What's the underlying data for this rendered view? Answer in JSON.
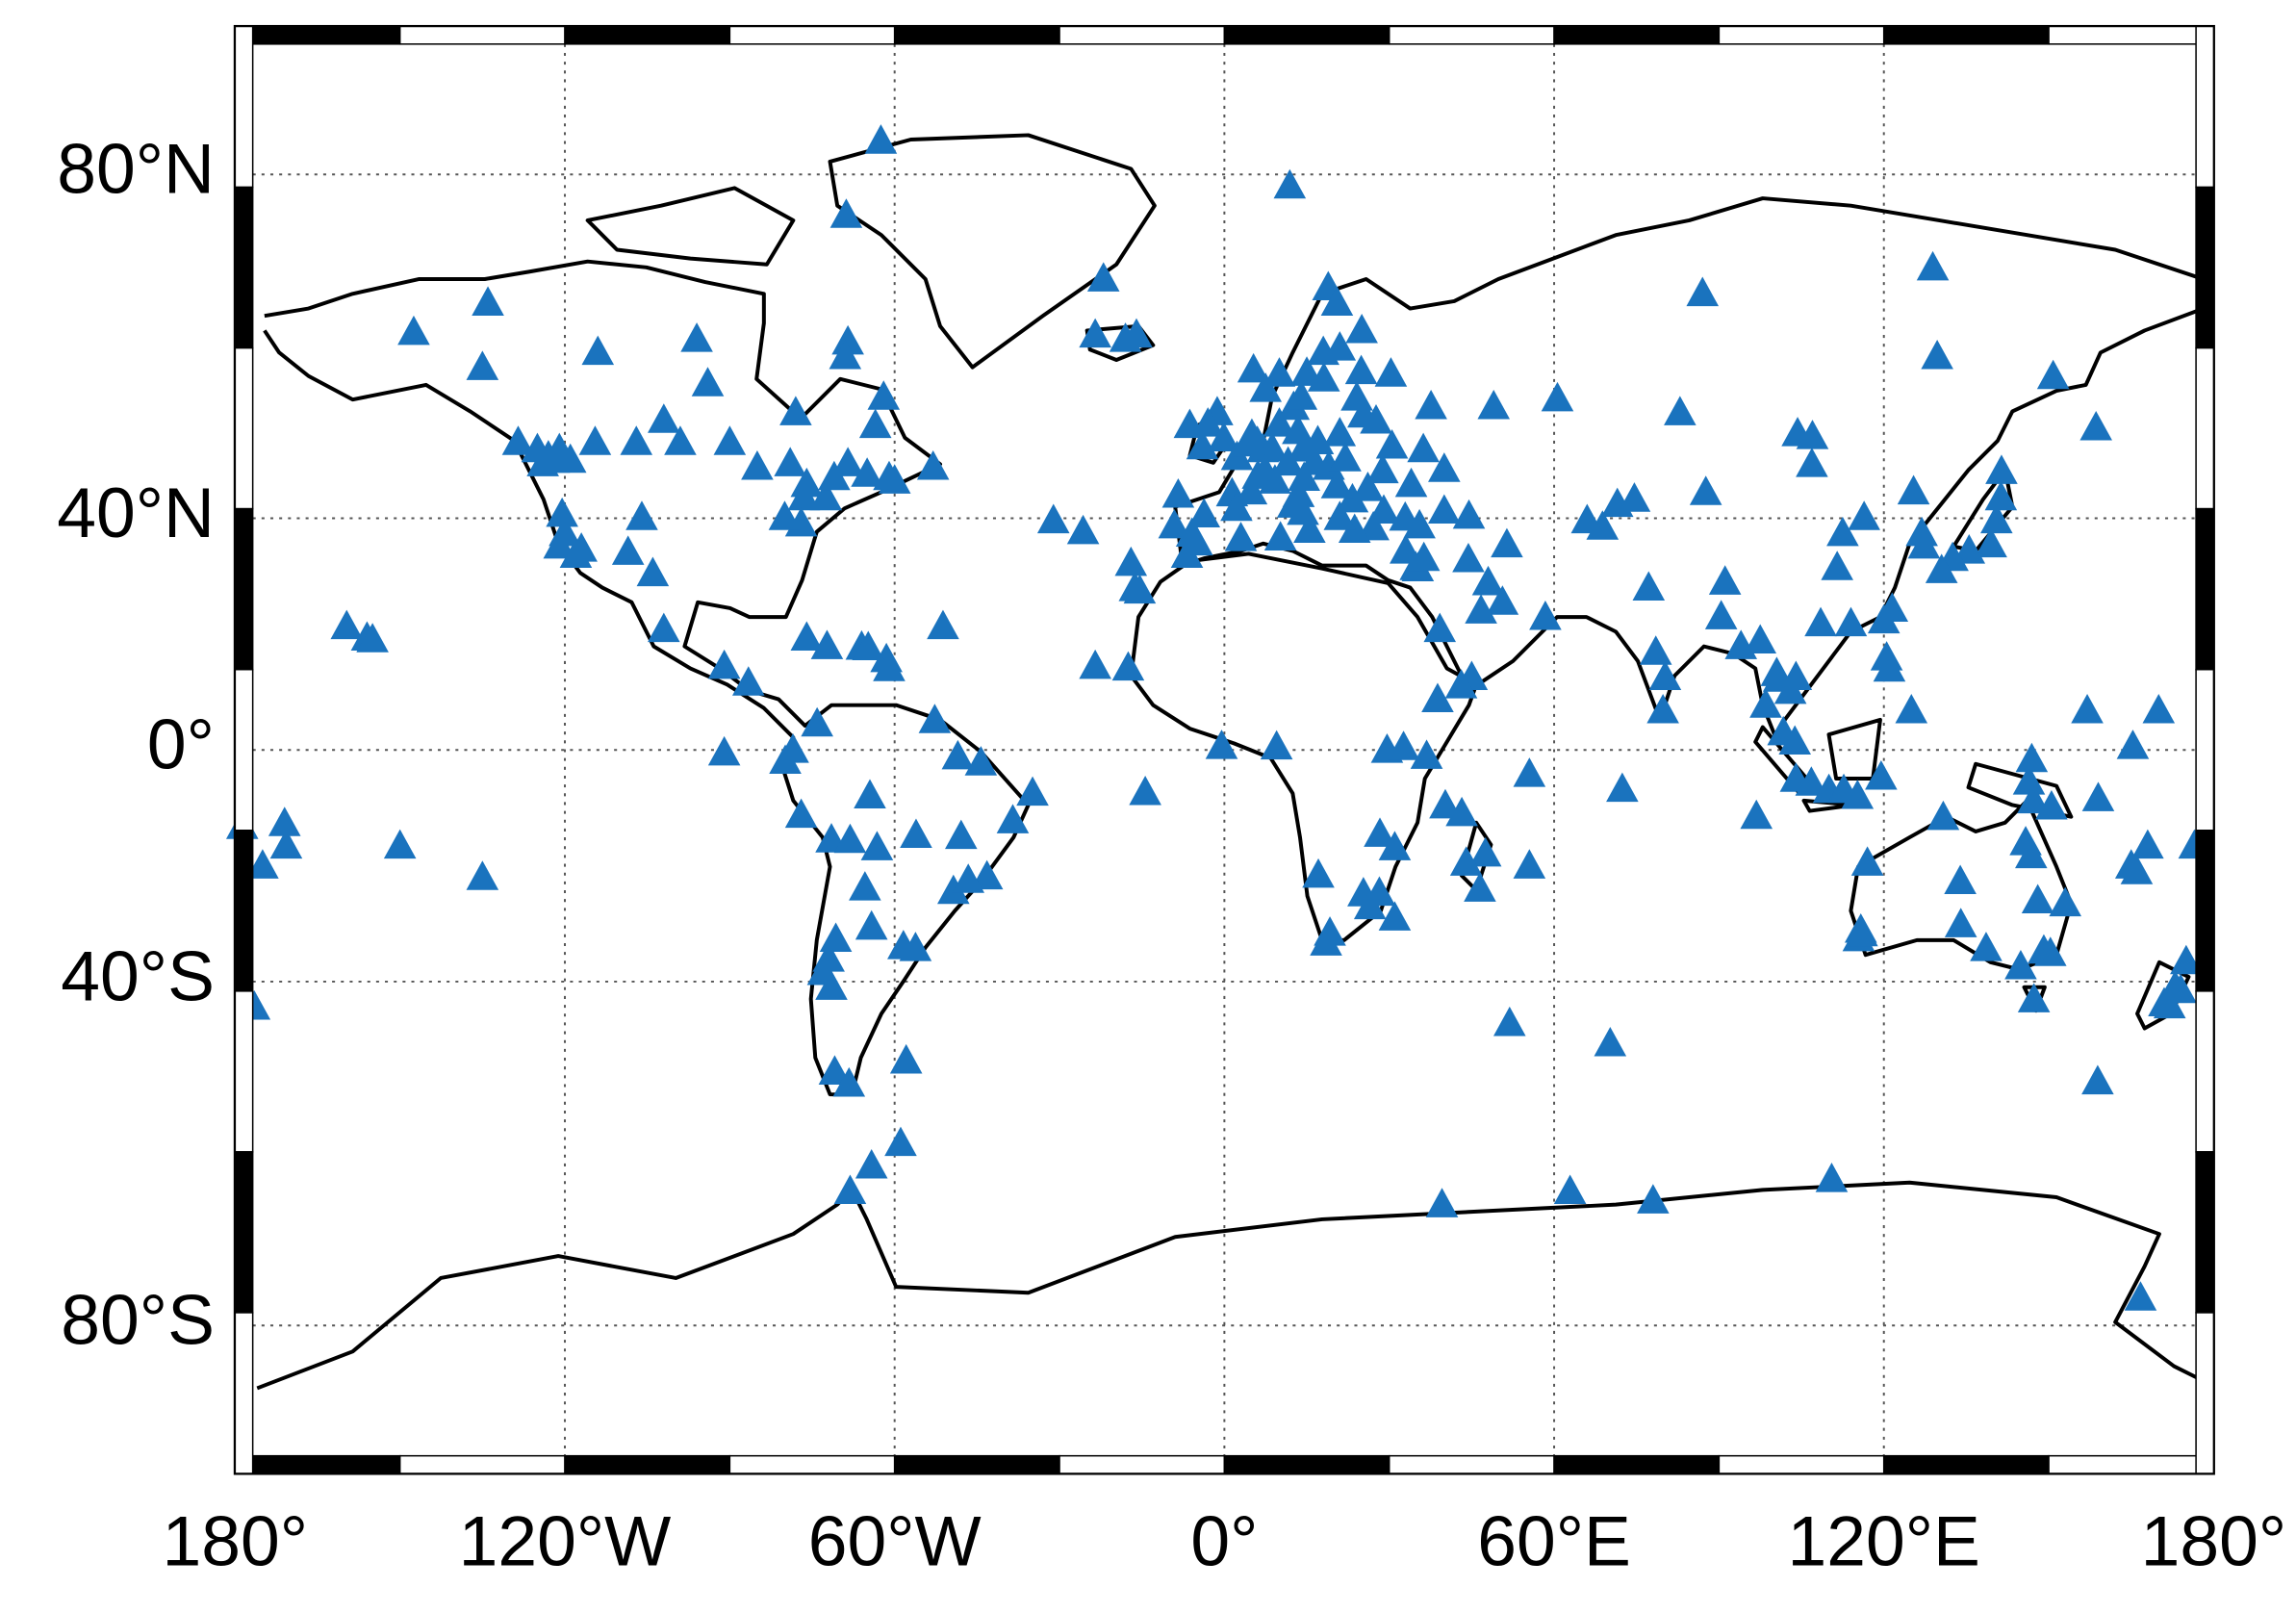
{
  "chart_data": {
    "type": "scatter",
    "projection": "miller",
    "grid": true,
    "color": "#1a73be",
    "xlim": [
      -180,
      180
    ],
    "ylim": [
      -90,
      90
    ],
    "xticks": [
      {
        "value": -180,
        "label": "180°"
      },
      {
        "value": -120,
        "label": "120°W"
      },
      {
        "value": -60,
        "label": "60°W"
      },
      {
        "value": 0,
        "label": "0°"
      },
      {
        "value": 60,
        "label": "60°E"
      },
      {
        "value": 120,
        "label": "120°E"
      },
      {
        "value": 180,
        "label": "180°"
      }
    ],
    "yticks": [
      {
        "value": -80,
        "label": "80°S"
      },
      {
        "value": -40,
        "label": "40°S"
      },
      {
        "value": 0,
        "label": "0°"
      },
      {
        "value": 40,
        "label": "40°N"
      },
      {
        "value": 80,
        "label": "80°N"
      }
    ],
    "x": [
      -147.5,
      -134,
      -135,
      -114,
      -96,
      -94,
      -78,
      -68.8,
      -68.5,
      -69,
      -62.5,
      -62,
      -63.5,
      -128.5,
      -123,
      -125,
      -121,
      -119,
      -124,
      -122,
      -114.5,
      -107,
      -102,
      -99,
      -90,
      -85,
      -79,
      -76.5,
      -72.5,
      -68.5,
      -65,
      -61,
      -53,
      -60,
      -120.5,
      -120,
      -117,
      -118,
      -121,
      -108.5,
      -106,
      -104,
      -102,
      -91,
      -86.6,
      -91,
      -77,
      -76,
      -71,
      -80,
      -159.7,
      -156,
      -155,
      -178.7,
      -171,
      -170.7,
      -175,
      -150,
      -135,
      -176.5,
      176.5,
      168,
      165,
      166,
      170,
      165.3,
      157,
      159,
      175,
      173,
      171,
      174,
      172,
      158.9,
      166.7,
      -22,
      -23.5,
      -16,
      -18,
      11.9,
      18.9,
      20.5,
      87,
      128.9,
      129.7,
      150.8,
      158.6,
      104.3,
      107,
      106.9,
      82.9,
      60.6,
      49,
      87.6,
      125.4,
      141.4,
      141.3,
      140.5,
      139.5,
      135.5,
      132.5,
      130.5,
      126.9,
      127.3,
      116.4,
      112.5,
      111.5,
      97.5,
      114,
      121.5,
      120,
      108.5,
      91.1,
      94,
      104,
      100.5,
      100.9,
      98.5,
      103,
      101.7,
      103.8,
      121,
      125,
      120.5,
      106.8,
      110,
      104,
      112.7,
      115.2,
      119.5,
      74.6,
      77.2,
      78.5,
      79.8,
      80.2,
      90.4,
      96.8,
      72.4,
      70.2,
      51.9,
      68.8,
      66,
      71.5,
      44.4,
      48,
      50.6,
      46.7,
      58.4,
      39.2,
      35.2,
      34.8,
      33,
      36.3,
      51.4,
      44.5,
      40,
      32.9,
      29,
      27.1,
      35.5,
      45,
      -0.5,
      9.5,
      -23.5,
      -17.5,
      -16.3,
      -17,
      -15.4,
      -6.8,
      -5,
      -14.4,
      29.6,
      32.6,
      36.8,
      38.8,
      43.1,
      28.3,
      31,
      17.1,
      18.5,
      19.2,
      25.3,
      28.2,
      31,
      26.5,
      47.5,
      44,
      46.5,
      55.5,
      55.5,
      43.2,
      40.2,
      3,
      10.2,
      -1.3,
      -3,
      -0.1,
      -4,
      -6.3,
      2.3,
      4.4,
      5,
      6,
      7,
      8.7,
      10,
      11.6,
      13.4,
      12.5,
      9.2,
      14.3,
      15.5,
      16.4,
      19,
      21,
      17,
      14.4,
      7.4,
      6.1,
      1.4,
      -3.7,
      2.2,
      -9.1,
      -8.4,
      -5.9,
      4.9,
      10,
      5.3,
      18.1,
      12.6,
      24.9,
      30.3,
      24.1,
      25.3,
      27.6,
      37.6,
      30.5,
      36.2,
      23.7,
      21,
      23.3,
      26.1,
      28.8,
      40,
      34,
      13.5,
      25,
      21,
      7.5,
      14,
      15,
      18,
      14.5,
      20.5,
      22,
      -74.1,
      -78.5,
      -79.9,
      -71.5,
      -64.5,
      -63.2,
      -65.4,
      -68.1,
      -77,
      -70.7,
      -72,
      -73,
      -71.5,
      -64.2,
      -56.2,
      -58.4,
      -57.9,
      -70.9,
      -68.3,
      -47.9,
      -49.3,
      -43.2,
      -46.6,
      -38.5,
      -44.3,
      -52.7,
      -56.1,
      -34.9,
      -76,
      -72.3,
      -66,
      -61.5,
      -61,
      -64.8,
      -51.2,
      -31.1,
      -25.7,
      -68.1,
      -64.2,
      -58.9,
      39.6,
      62.9,
      78,
      110.5,
      115.8,
      115.4,
      116,
      117,
      130.8,
      133.9,
      134,
      146.8,
      145.8,
      148,
      149.1,
      150.3,
      147.3,
      138.6,
      144.9,
      153,
      147.2,
      146.4,
      150.5,
      146.9,
      -48.5
    ],
    "values": [
      64.8,
      68,
      60.7,
      62.5,
      64,
      58.7,
      55,
      76.5,
      63.7,
      62,
      82.5,
      57,
      53.3,
      51,
      49,
      50,
      50,
      48.5,
      48,
      48.5,
      51,
      51,
      54,
      51,
      51,
      47.5,
      48,
      43,
      43,
      48,
      46.5,
      46,
      47.5,
      45.5,
      40.5,
      37.5,
      35,
      34,
      35.5,
      34.5,
      40,
      31,
      21.5,
      15,
      12,
      -0.7,
      39,
      45,
      46,
      40,
      22,
      20,
      19.7,
      -14,
      -13.5,
      -17.5,
      -21,
      -17.5,
      -23,
      -44,
      -17.5,
      -17.5,
      -21,
      -22,
      7,
      0.5,
      7,
      -9,
      -37,
      -41,
      -43.5,
      -41.5,
      -43.8,
      -54.5,
      -77.8,
      70.5,
      64.5,
      64.5,
      64,
      79,
      69.6,
      68,
      69,
      71.6,
      62,
      59.6,
      53,
      52.2,
      51.8,
      47.9,
      55,
      56.8,
      55.8,
      43.8,
      43.9,
      46.9,
      43,
      39.5,
      35.7,
      34.7,
      33.5,
      31.5,
      37.5,
      35.5,
      40,
      37.5,
      32,
      19.5,
      22.5,
      25,
      23,
      22.5,
      29.6,
      18.5,
      13,
      13.7,
      12.7,
      8,
      10.5,
      3,
      1.3,
      14.5,
      7,
      16.5,
      -6.2,
      -7.5,
      -5.5,
      -7.5,
      -8.6,
      -5.1,
      42.8,
      28.6,
      17.5,
      7,
      13,
      23.7,
      -12.2,
      -7.3,
      -49.3,
      -46.4,
      38.5,
      39.5,
      42,
      33.3,
      29.5,
      26.2,
      24.7,
      23.6,
      21.5,
      31.8,
      32,
      34.7,
      33.5,
      35.7,
      40.2,
      41,
      39.9,
      41,
      38.4,
      38.7,
      13,
      0.5,
      0.4,
      15,
      14.7,
      28.5,
      32.7,
      28.1,
      34,
      36,
      -7.9,
      -0.2,
      0.3,
      -1.3,
      9,
      11.5,
      -15.4,
      -17.8,
      -22.6,
      -34,
      -32.4,
      -25.8,
      -25.7,
      -29.9,
      -28,
      -18.9,
      -20.5,
      -25,
      -21,
      -4.6,
      -11.7,
      -10.3,
      36.7,
      36.8,
      55,
      53.5,
      51.5,
      50.4,
      53.3,
      48.9,
      50.8,
      52,
      51,
      50,
      50.1,
      53.5,
      48.1,
      52.5,
      41.9,
      45.5,
      40.8,
      38,
      48.2,
      47.5,
      52.2,
      51.1,
      50.1,
      46.9,
      46.2,
      43.6,
      40.4,
      41.4,
      38.7,
      43.4,
      37.4,
      43.9,
      59.9,
      60.4,
      59.3,
      55.7,
      60.2,
      59.9,
      56.9,
      54.7,
      53.9,
      55.8,
      50.5,
      50,
      38,
      40,
      42.7,
      44.4,
      47,
      47.2,
      45,
      43.5,
      65,
      63,
      58,
      57,
      60,
      62.5,
      45.9,
      44.8,
      48.7,
      4.6,
      -0.2,
      -2.2,
      -16.4,
      -8.5,
      -17.8,
      -24.8,
      -16.5,
      -12,
      -33.4,
      -36.6,
      -38.7,
      -41,
      -31.4,
      -34.9,
      -34.6,
      -51.7,
      -53.2,
      -54.8,
      -15.8,
      -25.4,
      -22.9,
      -23.5,
      -13,
      -2.5,
      5.2,
      -15.6,
      -8,
      20,
      18.5,
      18.4,
      16.2,
      14.6,
      18.3,
      22,
      39.5,
      37.8,
      -67.6,
      -64.8,
      -62.2,
      -69,
      -67.6,
      -68.6,
      -66.3,
      -31.9,
      -33.3,
      -32.5,
      -20.5,
      -12.4,
      -23.7,
      -31,
      -19.2,
      -16.9,
      -27,
      -35.3,
      -35.7,
      -42.9,
      -34.9,
      -37.8,
      -27.5,
      -9.4,
      -6,
      -10.5,
      -1.9,
      -1.4
    ]
  }
}
